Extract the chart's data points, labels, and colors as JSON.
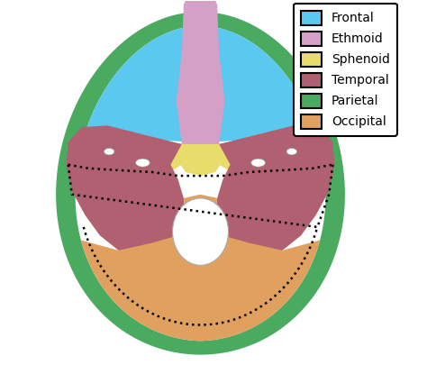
{
  "legend_entries": [
    {
      "label": "Frontal",
      "color": "#5BC8F0"
    },
    {
      "label": "Ethmoid",
      "color": "#D4A0C8"
    },
    {
      "label": "Sphenoid",
      "color": "#E8DC6A"
    },
    {
      "label": "Temporal",
      "color": "#B06070"
    },
    {
      "label": "Parietal",
      "color": "#4AAA60"
    },
    {
      "label": "Occipital",
      "color": "#E0A060"
    }
  ],
  "bg_color": "#FFFFFF",
  "figsize": [
    4.74,
    4.15
  ],
  "dpi": 100
}
